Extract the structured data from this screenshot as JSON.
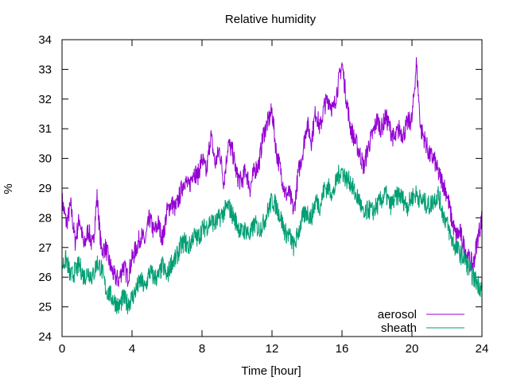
{
  "chart_data": {
    "type": "line",
    "title": "Relative humidity",
    "xlabel": "Time [hour]",
    "ylabel": "%",
    "xlim": [
      0,
      24
    ],
    "ylim": [
      24,
      34
    ],
    "xticks": [
      0,
      4,
      8,
      12,
      16,
      20,
      24
    ],
    "yticks": [
      24,
      25,
      26,
      27,
      28,
      29,
      30,
      31,
      32,
      33,
      34
    ],
    "grid": false,
    "legend_position": "bottom-right",
    "series": [
      {
        "name": "aerosol",
        "color": "#9400d3",
        "x": [
          0,
          0.25,
          0.5,
          0.75,
          1,
          1.25,
          1.5,
          1.75,
          2,
          2.25,
          2.5,
          2.75,
          3,
          3.25,
          3.5,
          3.75,
          4,
          4.25,
          4.5,
          4.75,
          5,
          5.25,
          5.5,
          5.75,
          6,
          6.25,
          6.5,
          6.75,
          7,
          7.25,
          7.5,
          7.75,
          8,
          8.25,
          8.5,
          8.75,
          9,
          9.25,
          9.5,
          9.75,
          10,
          10.25,
          10.5,
          10.75,
          11,
          11.25,
          11.5,
          11.75,
          12,
          12.25,
          12.5,
          12.75,
          13,
          13.25,
          13.5,
          13.75,
          14,
          14.25,
          14.5,
          14.75,
          15,
          15.25,
          15.5,
          15.75,
          16,
          16.25,
          16.5,
          16.75,
          17,
          17.25,
          17.5,
          17.75,
          18,
          18.25,
          18.5,
          18.75,
          19,
          19.25,
          19.5,
          19.75,
          20,
          20.25,
          20.5,
          20.75,
          21,
          21.25,
          21.5,
          21.75,
          22,
          22.25,
          22.5,
          22.75,
          23,
          23.25,
          23.5,
          23.75,
          24
        ],
        "values": [
          28.6,
          27.8,
          28.4,
          27.2,
          28.0,
          27.0,
          27.6,
          27.0,
          28.7,
          26.9,
          27.0,
          26.4,
          26.0,
          25.9,
          26.4,
          26.0,
          26.6,
          27.0,
          27.4,
          27.2,
          28.0,
          27.5,
          27.8,
          27.3,
          28.2,
          28.5,
          28.3,
          28.8,
          29.3,
          29.0,
          29.6,
          29.4,
          30.0,
          29.5,
          30.8,
          29.8,
          30.3,
          29.2,
          30.5,
          30.2,
          29.4,
          29.2,
          29.6,
          29.0,
          29.6,
          29.8,
          30.8,
          31.2,
          31.6,
          30.2,
          29.6,
          28.8,
          28.8,
          28.2,
          29.5,
          30.2,
          31.2,
          30.6,
          31.6,
          31.0,
          31.8,
          32.0,
          31.6,
          32.4,
          33.2,
          32.0,
          31.0,
          30.6,
          30.2,
          29.7,
          30.4,
          30.8,
          31.3,
          31.0,
          31.4,
          31.0,
          30.6,
          31.0,
          30.8,
          31.2,
          31.3,
          33.2,
          31.0,
          30.6,
          30.1,
          30.0,
          29.5,
          29.2,
          28.8,
          28.0,
          27.4,
          27.5,
          27.0,
          26.6,
          26.4,
          27.3,
          28.0
        ],
        "annotation": "aerosol"
      },
      {
        "name": "sheath",
        "color": "#009e73",
        "x": [
          0,
          0.25,
          0.5,
          0.75,
          1,
          1.25,
          1.5,
          1.75,
          2,
          2.25,
          2.5,
          2.75,
          3,
          3.25,
          3.5,
          3.75,
          4,
          4.25,
          4.5,
          4.75,
          5,
          5.25,
          5.5,
          5.75,
          6,
          6.25,
          6.5,
          6.75,
          7,
          7.25,
          7.5,
          7.75,
          8,
          8.25,
          8.5,
          8.75,
          9,
          9.25,
          9.5,
          9.75,
          10,
          10.25,
          10.5,
          10.75,
          11,
          11.25,
          11.5,
          11.75,
          12,
          12.25,
          12.5,
          12.75,
          13,
          13.25,
          13.5,
          13.75,
          14,
          14.25,
          14.5,
          14.75,
          15,
          15.25,
          15.5,
          15.75,
          16,
          16.25,
          16.5,
          16.75,
          17,
          17.25,
          17.5,
          17.75,
          18,
          18.25,
          18.5,
          18.75,
          19,
          19.25,
          19.5,
          19.75,
          20,
          20.25,
          20.5,
          20.75,
          21,
          21.25,
          21.5,
          21.75,
          22,
          22.25,
          22.5,
          22.75,
          23,
          23.25,
          23.5,
          23.75,
          24
        ],
        "values": [
          26.4,
          26.6,
          26.0,
          26.2,
          26.4,
          26.0,
          26.2,
          26.0,
          26.5,
          26.3,
          25.6,
          25.4,
          25.2,
          25.0,
          25.3,
          25.1,
          25.3,
          25.6,
          25.9,
          25.6,
          26.2,
          26.0,
          26.0,
          26.4,
          26.0,
          26.5,
          26.6,
          27.0,
          27.2,
          27.0,
          27.4,
          27.3,
          27.6,
          27.7,
          27.9,
          27.8,
          28.0,
          28.2,
          28.4,
          28.1,
          27.8,
          27.5,
          27.6,
          27.4,
          27.8,
          27.6,
          27.8,
          28.2,
          28.6,
          28.4,
          28.0,
          27.5,
          27.4,
          27.0,
          27.5,
          28.0,
          28.2,
          28.0,
          28.6,
          28.4,
          29.0,
          29.0,
          28.8,
          29.4,
          29.6,
          29.3,
          29.2,
          28.8,
          28.6,
          28.0,
          28.3,
          28.2,
          28.4,
          28.6,
          28.8,
          28.4,
          28.6,
          28.8,
          28.6,
          28.4,
          28.7,
          28.8,
          28.6,
          28.5,
          28.4,
          28.6,
          28.8,
          28.2,
          27.8,
          27.3,
          27.0,
          26.8,
          26.6,
          26.3,
          26.0,
          25.8,
          25.6
        ],
        "annotation": "sheath"
      }
    ]
  }
}
